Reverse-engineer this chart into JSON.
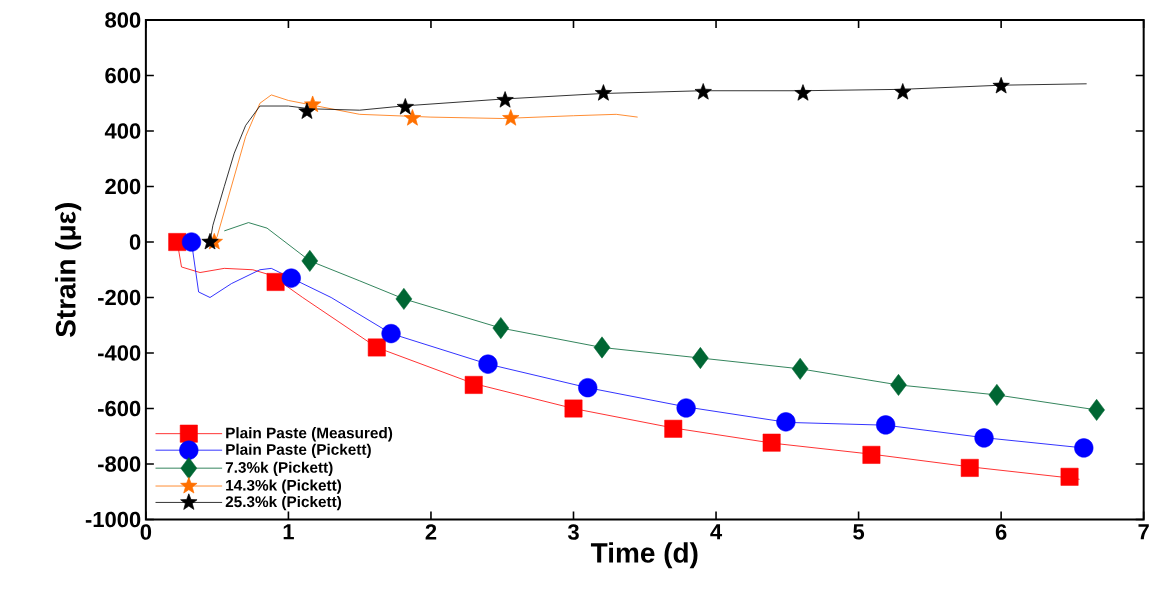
{
  "chart_data": {
    "type": "line",
    "xlabel": "Time (d)",
    "ylabel": "Strain (με)",
    "xlim": [
      0,
      7
    ],
    "xticks": [
      0,
      1,
      2,
      3,
      4,
      5,
      6,
      7
    ],
    "ylim": [
      -1000,
      800
    ],
    "yticks": [
      -1000,
      -800,
      -600,
      -400,
      -200,
      0,
      200,
      400,
      600,
      800
    ],
    "grid": false,
    "legend": "bottom left",
    "series": [
      {
        "color": "#ff0000",
        "x": [
          0.22,
          0.25,
          0.38,
          0.55,
          0.75,
          0.88,
          1.1,
          1.62,
          2.3,
          3.0,
          3.7,
          4.4,
          5.1,
          5.78,
          6.48,
          6.55
        ],
        "values": [
          0,
          -90,
          -110,
          -95,
          -100,
          -120,
          -200,
          -380,
          -510,
          -600,
          -670,
          -725,
          -765,
          -810,
          -850,
          -855
        ]
      },
      {
        "color": "#0000ff",
        "x": [
          0.32,
          0.37,
          0.45,
          0.6,
          0.8,
          0.88,
          1.02,
          1.3,
          1.72,
          2.4,
          3.1,
          3.8,
          4.5,
          5.19,
          5.88,
          6.58,
          6.62
        ],
        "values": [
          0,
          -180,
          -200,
          -150,
          -100,
          -95,
          -130,
          -200,
          -330,
          -440,
          -525,
          -595,
          -650,
          -660,
          -705,
          -742,
          -745
        ]
      },
      {
        "color": "#006633",
        "x": [
          0.55,
          0.72,
          0.85,
          1.15,
          1.5,
          1.81,
          2.49,
          3.2,
          3.89,
          4.59,
          5.28,
          5.97,
          6.67
        ],
        "values": [
          40,
          70,
          50,
          -68,
          -140,
          -205,
          -310,
          -380,
          -418,
          -457,
          -515,
          -551,
          -605
        ]
      },
      {
        "color": "#ff7000",
        "x": [
          0.48,
          0.5,
          0.6,
          0.7,
          0.8,
          0.88,
          1.0,
          1.2,
          1.5,
          2.0,
          2.5,
          3.0,
          3.3,
          3.45
        ],
        "values": [
          0,
          20,
          200,
          380,
          500,
          530,
          510,
          490,
          460,
          450,
          445,
          455,
          460,
          450
        ]
      },
      {
        "color": "#000000",
        "x": [
          0.45,
          0.47,
          0.55,
          0.62,
          0.7,
          0.8,
          1.0,
          1.15,
          1.5,
          1.8,
          2.5,
          3.2,
          3.9,
          4.6,
          5.3,
          6.0,
          6.6
        ],
        "values": [
          0,
          60,
          200,
          320,
          420,
          490,
          490,
          480,
          475,
          490,
          515,
          535,
          545,
          545,
          550,
          565,
          570
        ]
      },
      {
        "type": "scatter",
        "name": "Plain Paste (Measured)",
        "color": "#ff0000",
        "marker": "square",
        "x": [
          0.22,
          0.91,
          1.62,
          2.3,
          3.0,
          3.7,
          4.39,
          5.09,
          5.78,
          6.48
        ],
        "values": [
          0,
          -144,
          -380,
          -515,
          -600,
          -673,
          -723,
          -767,
          -814,
          -846
        ]
      },
      {
        "type": "scatter",
        "name": "Plain Paste (Pickett)",
        "color": "#0000ff",
        "marker": "circle",
        "x": [
          0.32,
          1.02,
          1.72,
          2.4,
          3.1,
          3.79,
          4.49,
          5.19,
          5.88,
          6.58
        ],
        "values": [
          0,
          -130,
          -330,
          -440,
          -525,
          -598,
          -648,
          -659,
          -706,
          -742
        ]
      },
      {
        "type": "scatter",
        "name": "7.3%k (Pickett)",
        "color": "#006633",
        "marker": "diamond",
        "x": [
          1.15,
          1.81,
          2.49,
          3.2,
          3.89,
          4.59,
          5.28,
          5.97,
          6.67
        ],
        "values": [
          -68,
          -205,
          -310,
          -380,
          -418,
          -457,
          -515,
          -551,
          -605
        ]
      },
      {
        "type": "scatter",
        "name": "14.3%k (Pickett)",
        "color": "#ff7000",
        "marker": "star",
        "x": [
          0.48,
          1.17,
          1.87,
          2.56
        ],
        "values": [
          0,
          495,
          446,
          446
        ]
      },
      {
        "type": "scatter",
        "name": "25.3%k (Pickett)",
        "color": "#000000",
        "marker": "star",
        "x": [
          0.45,
          1.13,
          1.82,
          2.52,
          3.21,
          3.91,
          4.61,
          5.31,
          6.0
        ],
        "values": [
          0,
          470,
          486,
          511,
          536,
          540,
          536,
          540,
          562
        ]
      }
    ]
  }
}
